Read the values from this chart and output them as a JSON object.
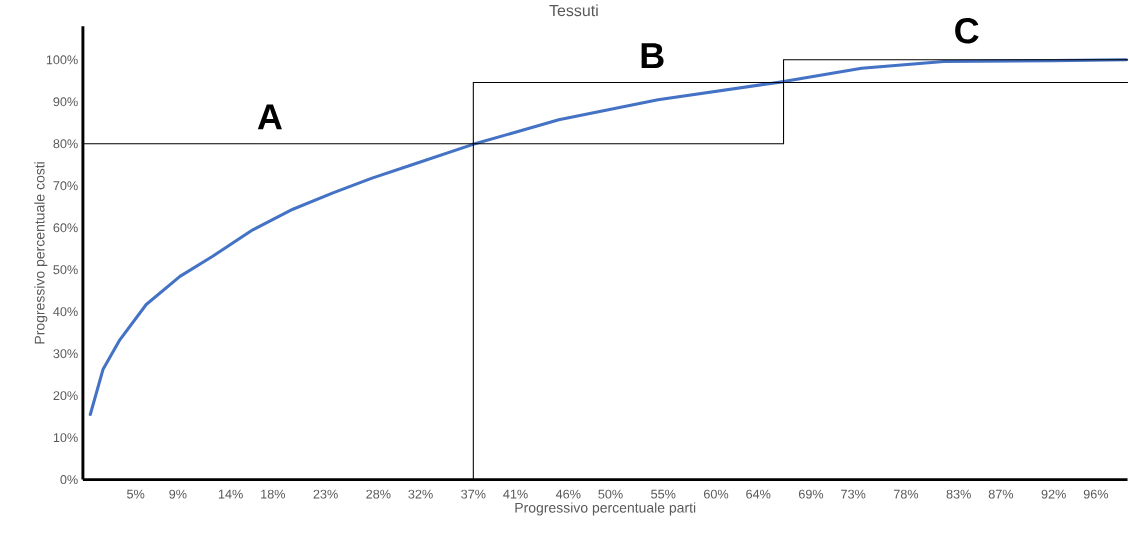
{
  "chart_data": {
    "type": "line",
    "title": "Tessuti",
    "xlabel": "Progressivo percentuale parti",
    "ylabel": "Progressivo percentuale costi",
    "xlim": [
      0,
      99
    ],
    "ylim": [
      0,
      108
    ],
    "xticks": [
      {
        "value": 5,
        "label": "5%"
      },
      {
        "value": 9,
        "label": "9%"
      },
      {
        "value": 14,
        "label": "14%"
      },
      {
        "value": 18,
        "label": "18%"
      },
      {
        "value": 23,
        "label": "23%"
      },
      {
        "value": 28,
        "label": "28%"
      },
      {
        "value": 32,
        "label": "32%"
      },
      {
        "value": 37,
        "label": "37%"
      },
      {
        "value": 41,
        "label": "41%"
      },
      {
        "value": 46,
        "label": "46%"
      },
      {
        "value": 50,
        "label": "50%"
      },
      {
        "value": 55,
        "label": "55%"
      },
      {
        "value": 60,
        "label": "60%"
      },
      {
        "value": 64,
        "label": "64%"
      },
      {
        "value": 69,
        "label": "69%"
      },
      {
        "value": 73,
        "label": "73%"
      },
      {
        "value": 78,
        "label": "78%"
      },
      {
        "value": 83,
        "label": "83%"
      },
      {
        "value": 87,
        "label": "87%"
      },
      {
        "value": 92,
        "label": "92%"
      },
      {
        "value": 96,
        "label": "96%"
      }
    ],
    "yticks": [
      {
        "value": 0,
        "label": "0%"
      },
      {
        "value": 10,
        "label": "10%"
      },
      {
        "value": 20,
        "label": "20%"
      },
      {
        "value": 30,
        "label": "30%"
      },
      {
        "value": 40,
        "label": "40%"
      },
      {
        "value": 50,
        "label": "50%"
      },
      {
        "value": 60,
        "label": "60%"
      },
      {
        "value": 70,
        "label": "70%"
      },
      {
        "value": 80,
        "label": "80%"
      },
      {
        "value": 90,
        "label": "90%"
      },
      {
        "value": 100,
        "label": "100%"
      }
    ],
    "grid": false,
    "marker": "none",
    "line_style": "solid",
    "series": [
      {
        "color": "#4472c4",
        "x": [
          0.7,
          1.9,
          3.5,
          6.0,
          9.2,
          12.3,
          16.1,
          19.9,
          23.7,
          27.4,
          31.2,
          36.9,
          45.1,
          54.5,
          66.4,
          73.8,
          81.6,
          92.0,
          98.9
        ],
        "values": [
          15.5,
          26.2,
          33.3,
          41.7,
          48.4,
          53.2,
          59.5,
          64.4,
          68.3,
          71.8,
          75.0,
          79.8,
          85.7,
          90.5,
          94.8,
          98.0,
          99.6,
          99.8,
          100
        ]
      },
      {
        "color": "#000000",
        "x": [
          0,
          66.4
        ],
        "values": [
          80,
          80
        ]
      },
      {
        "color": "#000000",
        "x": [
          37,
          99
        ],
        "values": [
          94.6,
          94.6
        ]
      },
      {
        "color": "#000000",
        "x": [
          66.4,
          99
        ],
        "values": [
          100,
          100
        ]
      }
    ],
    "ref_lines": [
      {
        "axis": "x",
        "value": 37,
        "color": "#000000"
      },
      {
        "axis": "x",
        "value": 66.4,
        "color": "#000000"
      }
    ],
    "annotations": [
      "A",
      "B",
      "C"
    ]
  }
}
